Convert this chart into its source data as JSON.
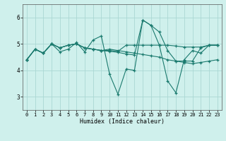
{
  "xlabel": "Humidex (Indice chaleur)",
  "ylabel": "",
  "background_color": "#cff0ec",
  "line_color": "#1a7a6e",
  "grid_color": "#aad8d3",
  "xlim": [
    -0.5,
    23.5
  ],
  "ylim": [
    2.5,
    6.5
  ],
  "yticks": [
    3,
    4,
    5,
    6
  ],
  "xticks": [
    0,
    1,
    2,
    3,
    4,
    5,
    6,
    7,
    8,
    9,
    10,
    11,
    12,
    13,
    14,
    15,
    16,
    17,
    18,
    19,
    20,
    21,
    22,
    23
  ],
  "series": [
    [
      4.4,
      4.8,
      4.65,
      5.0,
      4.7,
      4.8,
      5.05,
      4.7,
      5.15,
      5.3,
      3.85,
      3.1,
      4.05,
      4.0,
      5.9,
      5.7,
      4.95,
      3.6,
      3.15,
      4.4,
      4.75,
      4.65,
      4.95,
      4.95
    ],
    [
      4.4,
      4.8,
      4.65,
      5.0,
      4.85,
      4.95,
      5.0,
      4.85,
      4.8,
      4.75,
      4.8,
      4.75,
      4.7,
      4.65,
      4.6,
      4.55,
      4.5,
      4.4,
      4.35,
      4.3,
      4.25,
      4.3,
      4.35,
      4.4
    ],
    [
      4.4,
      4.8,
      4.65,
      5.0,
      4.85,
      4.95,
      5.0,
      4.85,
      4.8,
      4.75,
      4.75,
      4.72,
      4.95,
      4.95,
      4.95,
      4.95,
      4.95,
      4.95,
      4.92,
      4.88,
      4.88,
      4.88,
      4.95,
      4.95
    ],
    [
      4.4,
      4.8,
      4.65,
      5.0,
      4.85,
      4.95,
      5.0,
      4.85,
      4.8,
      4.75,
      4.72,
      4.68,
      4.62,
      4.58,
      5.9,
      5.7,
      5.45,
      4.75,
      4.35,
      4.35,
      4.35,
      4.85,
      4.95,
      4.95
    ]
  ]
}
